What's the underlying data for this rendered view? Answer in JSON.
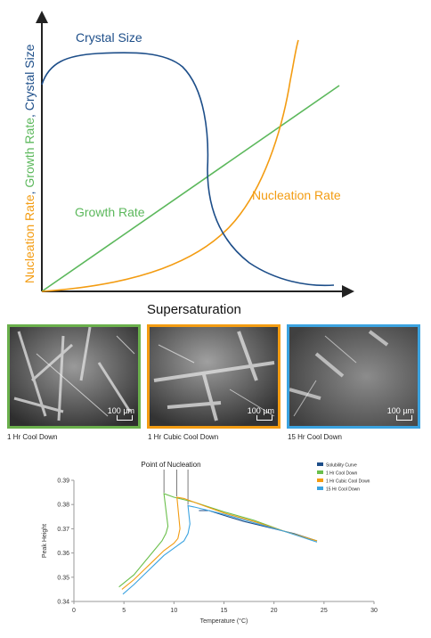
{
  "top_diagram": {
    "x_axis_label": "Supersaturation",
    "y_axis_label_parts": [
      {
        "text": "Nucleation Rate",
        "color": "#f39c12"
      },
      {
        "text": ", ",
        "color": "#1d4e89"
      },
      {
        "text": "Growth Rate",
        "color": "#5cb85c"
      },
      {
        "text": ", ",
        "color": "#1d4e89"
      },
      {
        "text": "Crystal Size",
        "color": "#1d4e89"
      }
    ],
    "curve_labels": {
      "crystal_size": "Crystal Size",
      "growth_rate": "Growth Rate",
      "nucleation_rate": "Nucleation Rate"
    },
    "colors": {
      "crystal_size": "#1d4e89",
      "growth_rate": "#5cb85c",
      "nucleation_rate": "#f39c12",
      "axis": "#222222"
    }
  },
  "photos": [
    {
      "caption": "1 Hr Cool Down",
      "scale": "100 µm",
      "border_color": "#6ab04c"
    },
    {
      "caption": "1 Hr Cubic Cool Down",
      "scale": "100 µm",
      "border_color": "#f39c12"
    },
    {
      "caption": "15 Hr Cool Down",
      "scale": "100 µm",
      "border_color": "#3ba3e0"
    }
  ],
  "chart_data": {
    "type": "line",
    "title": "",
    "annotation": "Point of Nucleation",
    "xlabel": "Temperature (°C)",
    "ylabel": "Peak Height",
    "xlim": [
      0,
      30
    ],
    "ylim": [
      0.34,
      0.39
    ],
    "xticks": [
      0,
      5,
      10,
      15,
      20,
      25,
      30
    ],
    "yticks": [
      0.34,
      0.35,
      0.36,
      0.37,
      0.38,
      0.39
    ],
    "legend_position": "top-right",
    "series": [
      {
        "name": "Solubility Curve",
        "color": "#1d4e89",
        "x": [
          12.5,
          13.5,
          15,
          17,
          20,
          22,
          24.3
        ],
        "y": [
          0.3775,
          0.3775,
          0.3755,
          0.373,
          0.37,
          0.368,
          0.365
        ]
      },
      {
        "name": "1 Hr Cool Down",
        "color": "#6abf4b",
        "x": [
          4.5,
          6,
          7,
          8,
          8.8,
          9.2,
          9.4,
          9.0,
          10,
          12,
          15,
          18,
          21,
          24.3
        ],
        "y": [
          0.346,
          0.351,
          0.356,
          0.361,
          0.365,
          0.368,
          0.371,
          0.3845,
          0.383,
          0.381,
          0.377,
          0.3735,
          0.369,
          0.365
        ]
      },
      {
        "name": "1 Hr Cubic Cool Down",
        "color": "#f39c12",
        "x": [
          4.8,
          6,
          7,
          8,
          9,
          10,
          10.4,
          10.6,
          10.3,
          11,
          13,
          15,
          18,
          21,
          24.3
        ],
        "y": [
          0.345,
          0.349,
          0.353,
          0.357,
          0.361,
          0.364,
          0.366,
          0.37,
          0.383,
          0.3825,
          0.3795,
          0.3765,
          0.373,
          0.369,
          0.365
        ]
      },
      {
        "name": "15 Hr Cool Down",
        "color": "#3ba3e0",
        "x": [
          4.9,
          6,
          7,
          8,
          9,
          10,
          11,
          11.4,
          11.6,
          11.4,
          12,
          13.5,
          15,
          18,
          21,
          24.3
        ],
        "y": [
          0.343,
          0.347,
          0.351,
          0.355,
          0.359,
          0.362,
          0.365,
          0.368,
          0.372,
          0.3795,
          0.379,
          0.3775,
          0.376,
          0.3725,
          0.369,
          0.3645
        ]
      }
    ]
  }
}
